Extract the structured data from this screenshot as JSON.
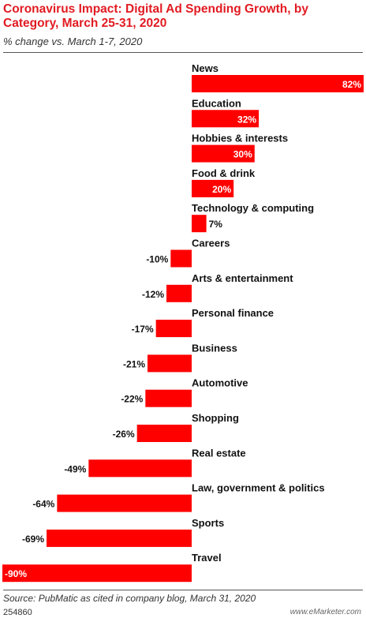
{
  "title": "Coronavirus Impact: Digital Ad Spending Growth, by Category, March 25-31, 2020",
  "subtitle": "% change vs. March 1-7, 2020",
  "source": "Source: PubMatic as cited in company blog, March 31, 2020",
  "chart_id": "254860",
  "brand": "www.eMarketer.com",
  "colors": {
    "bar": "#ff0000",
    "title": "#e11b22"
  },
  "chart_data": {
    "type": "bar",
    "orientation": "horizontal",
    "categories": [
      "News",
      "Education",
      "Hobbies & interests",
      "Food & drink",
      "Technology & computing",
      "Careers",
      "Arts & entertainment",
      "Personal finance",
      "Business",
      "Automotive",
      "Shopping",
      "Real estate",
      "Law, government & politics",
      "Sports",
      "Travel"
    ],
    "values": [
      82,
      32,
      30,
      20,
      7,
      -10,
      -12,
      -17,
      -21,
      -22,
      -26,
      -49,
      -64,
      -69,
      -90
    ],
    "labels": [
      "82%",
      "32%",
      "30%",
      "20%",
      "7%",
      "-10%",
      "-12%",
      "-17%",
      "-21%",
      "-22%",
      "-26%",
      "-49%",
      "-64%",
      "-69%",
      "-90%"
    ],
    "title": "Coronavirus Impact: Digital Ad Spending Growth, by Category, March 25-31, 2020",
    "subtitle": "% change vs. March 1-7, 2020",
    "xlim": [
      -90,
      82
    ],
    "grid": false,
    "legend": "none"
  }
}
